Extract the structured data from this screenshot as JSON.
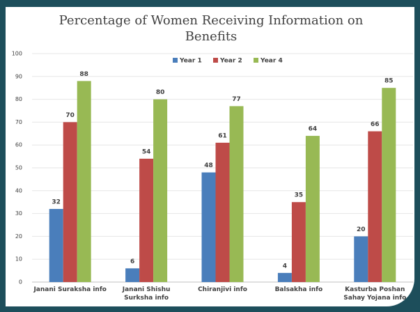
{
  "chart_data": {
    "type": "bar",
    "title": "Percentage of Women Receiving Information on Benefits",
    "categories": [
      "Janani Suraksha info",
      "Janani Shishu Surksha info",
      "Chiranjivi info",
      "Balsakha info",
      "Kasturba Poshan Sahay Yojana info"
    ],
    "series": [
      {
        "name": "Year 1",
        "color": "#4a7ebb",
        "values": [
          32,
          6,
          48,
          4,
          20
        ]
      },
      {
        "name": "Year 2",
        "color": "#be4b48",
        "values": [
          70,
          54,
          61,
          35,
          66
        ]
      },
      {
        "name": "Year 4",
        "color": "#98b954",
        "values": [
          88,
          80,
          77,
          64,
          85
        ]
      }
    ],
    "ylim": [
      0,
      100
    ],
    "yticks": [
      0,
      10,
      20,
      30,
      40,
      50,
      60,
      70,
      80,
      90,
      100
    ],
    "grid": true,
    "legend": "top"
  }
}
